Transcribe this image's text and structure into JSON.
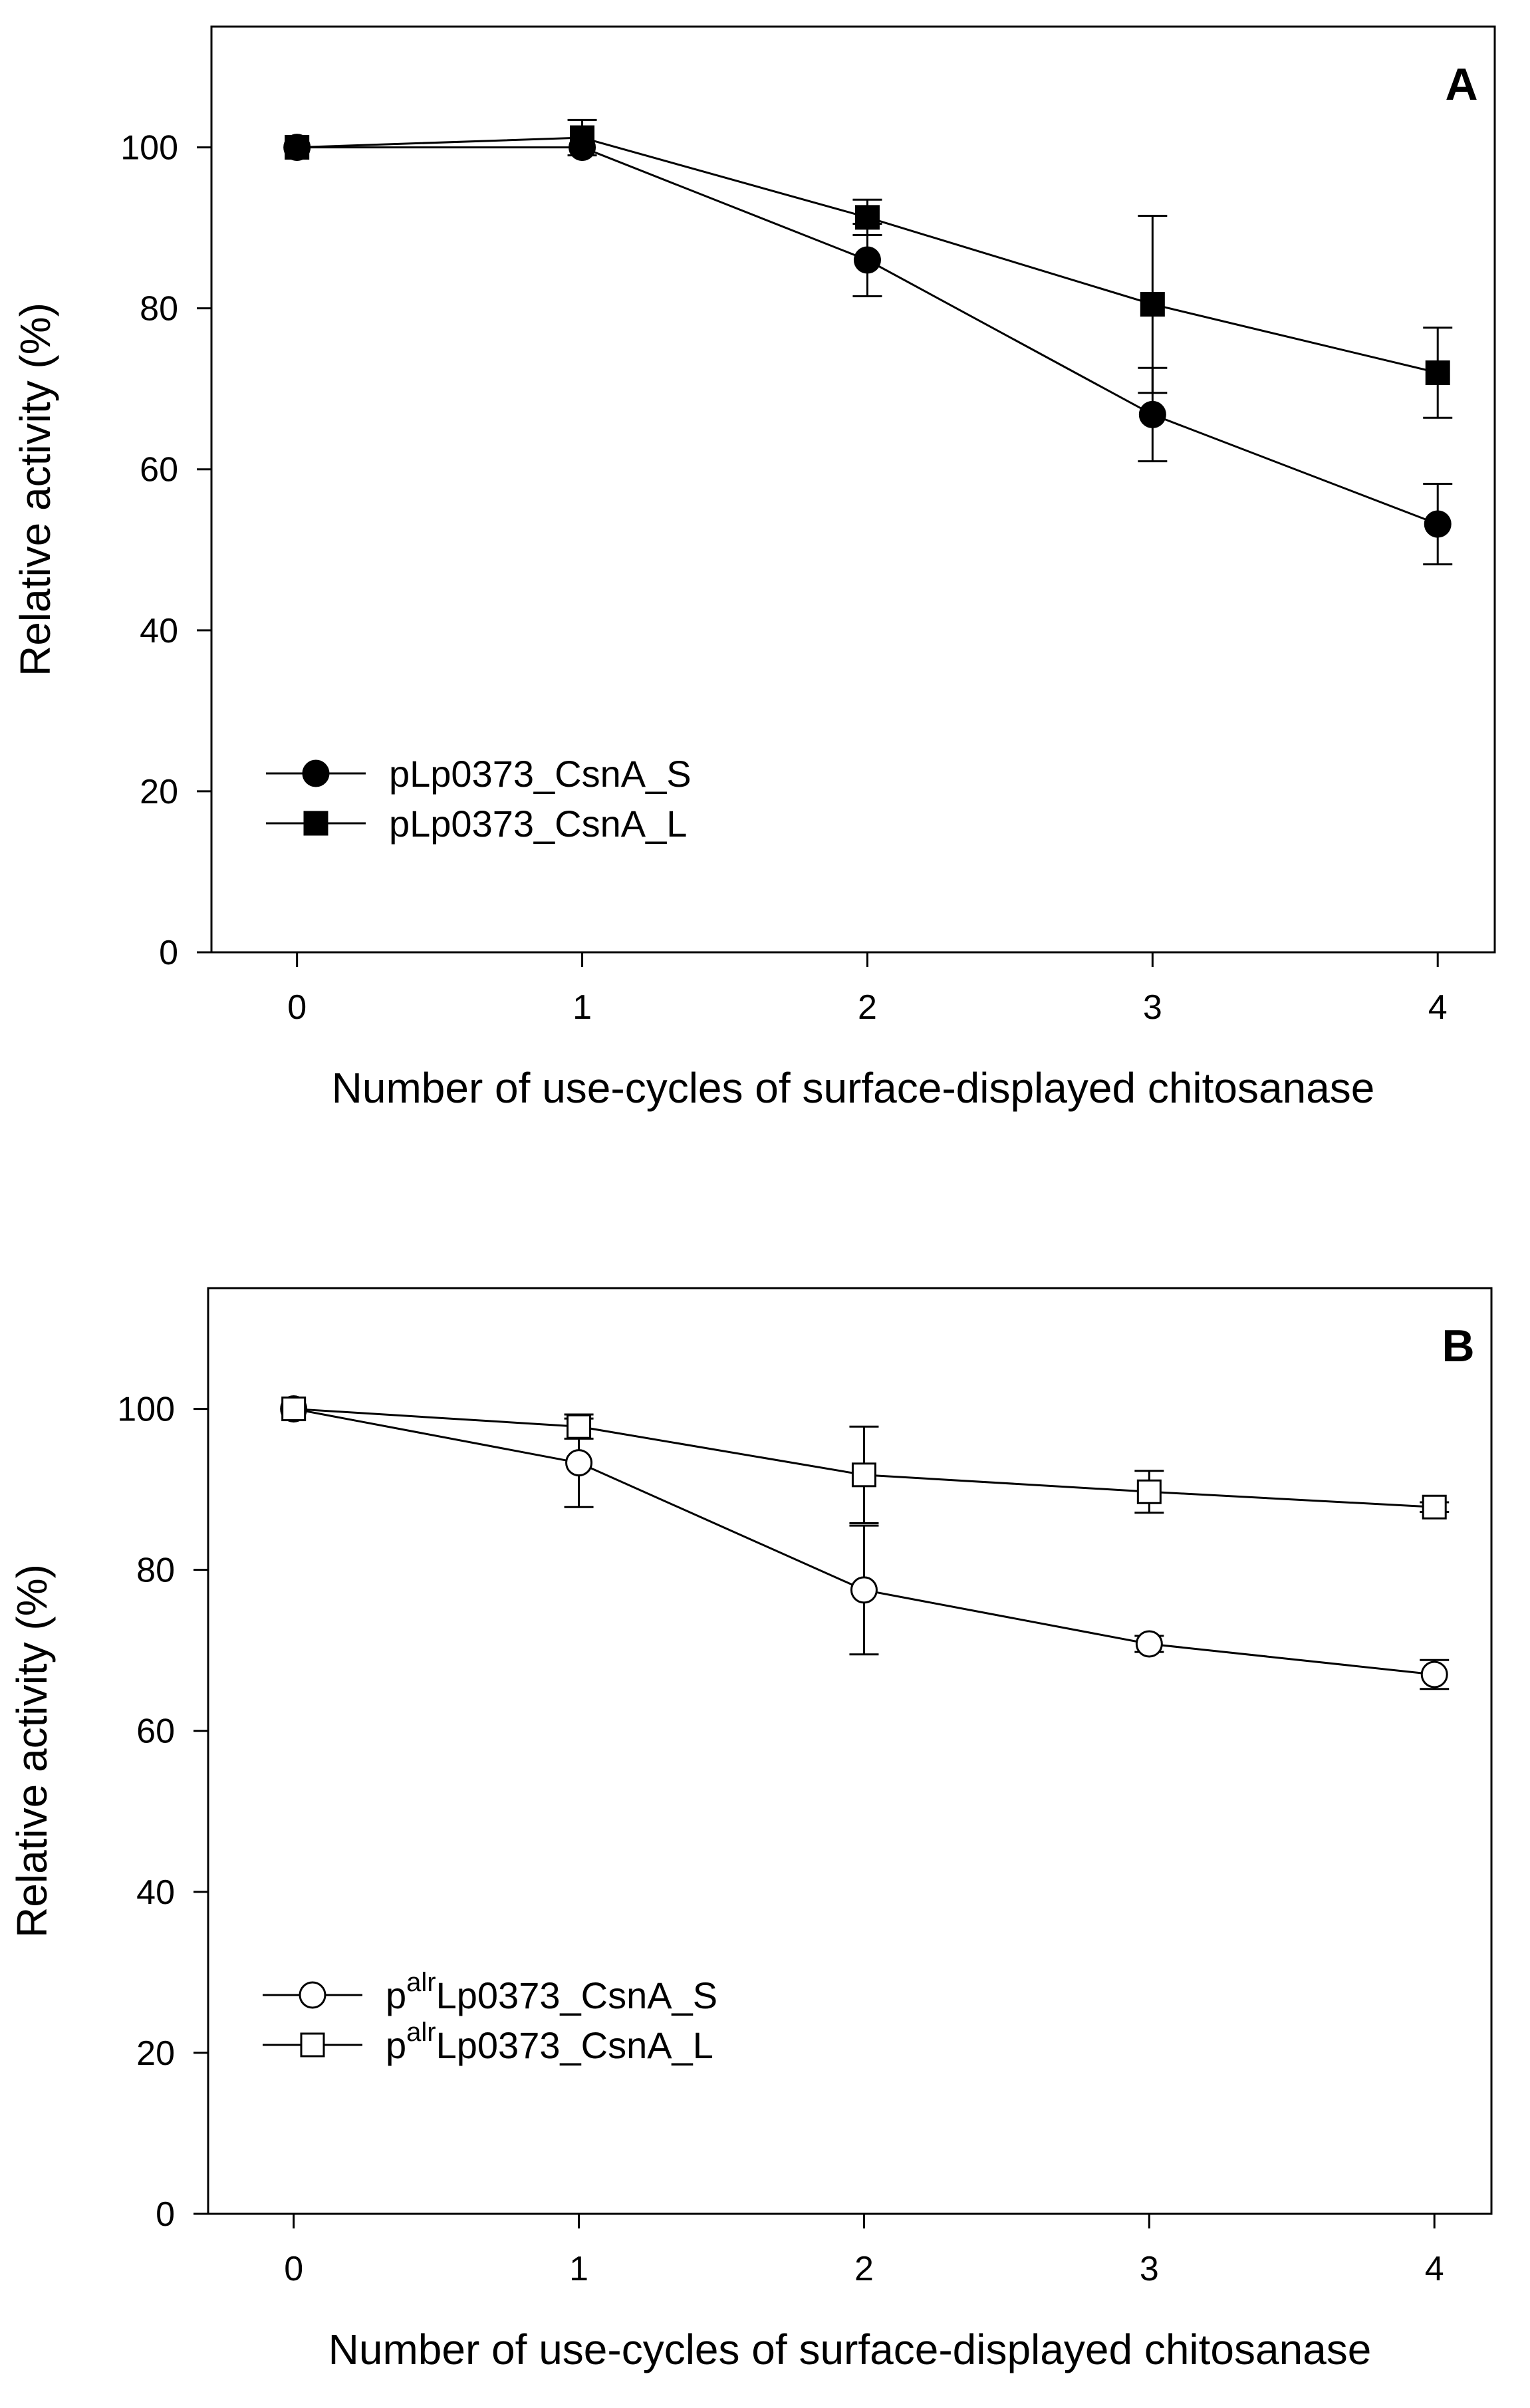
{
  "chart_data": [
    {
      "type": "line",
      "panel_label": "A",
      "xlabel": "Number of use-cycles of surface-displayed chitosanase",
      "ylabel": "Relative activity (%)",
      "xlim": [
        -0.3,
        4.2
      ],
      "ylim": [
        0,
        115
      ],
      "x_ticks": [
        0,
        1,
        2,
        3,
        4
      ],
      "x_tick_labels": [
        "0",
        "1",
        "2",
        "3",
        "4"
      ],
      "y_ticks": [
        0,
        20,
        40,
        60,
        80,
        100
      ],
      "y_tick_labels": [
        "0",
        "20",
        "40",
        "60",
        "80",
        "100"
      ],
      "grid": false,
      "legend_position": "bottom-left",
      "series": [
        {
          "name": "pLp0373_CsnA_S",
          "name_prefix": "",
          "name_superscript": "",
          "name_main": "pLp0373_CsnA_S",
          "marker": "circle",
          "filled": true,
          "x": [
            0,
            1,
            2,
            3,
            4
          ],
          "values": [
            100,
            100,
            86,
            66.8,
            53.2
          ],
          "errors": [
            0,
            0,
            4.5,
            5.8,
            5
          ]
        },
        {
          "name": "pLp0373_CsnA_L",
          "name_prefix": "",
          "name_superscript": "",
          "name_main": "pLp0373_CsnA_L",
          "marker": "square",
          "filled": true,
          "x": [
            0,
            1,
            2,
            3,
            4
          ],
          "values": [
            100,
            101.2,
            91.3,
            80.5,
            72
          ],
          "errors": [
            0,
            2.2,
            2.2,
            11,
            5.6
          ]
        }
      ]
    },
    {
      "type": "line",
      "panel_label": "B",
      "xlabel": "Number of use-cycles of surface-displayed chitosanase",
      "ylabel": "Relative activity (%)",
      "xlim": [
        -0.3,
        4.2
      ],
      "ylim": [
        0,
        115
      ],
      "x_ticks": [
        0,
        1,
        2,
        3,
        4
      ],
      "x_tick_labels": [
        "0",
        "1",
        "2",
        "3",
        "4"
      ],
      "y_ticks": [
        0,
        20,
        40,
        60,
        80,
        100
      ],
      "y_tick_labels": [
        "0",
        "20",
        "40",
        "60",
        "80",
        "100"
      ],
      "grid": false,
      "legend_position": "bottom-left",
      "series": [
        {
          "name": "palrLp0373_CsnA_S",
          "name_prefix": "p",
          "name_superscript": "alr",
          "name_main": "Lp0373_CsnA_S",
          "marker": "circle",
          "filled": false,
          "x": [
            0,
            1,
            2,
            3,
            4
          ],
          "values": [
            100,
            93.3,
            77.5,
            70.8,
            67
          ],
          "errors": [
            0,
            5.5,
            8,
            1,
            1.8
          ]
        },
        {
          "name": "palrLp0373_CsnA_L",
          "name_prefix": "p",
          "name_superscript": "alr",
          "name_main": "Lp0373_CsnA_L",
          "marker": "square",
          "filled": false,
          "x": [
            0,
            1,
            2,
            3,
            4
          ],
          "values": [
            100,
            97.8,
            91.8,
            89.7,
            87.8
          ],
          "errors": [
            0,
            1.5,
            6,
            2.6,
            0.6
          ]
        }
      ]
    }
  ]
}
